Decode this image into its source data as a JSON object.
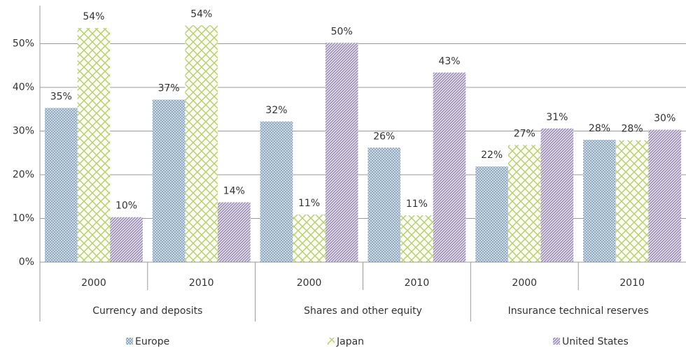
{
  "chart_data": {
    "type": "bar",
    "categories": [
      "2000",
      "2010",
      "2000",
      "2010",
      "2000",
      "2010"
    ],
    "category_groups": [
      "Currency and deposits",
      "Shares and other equity",
      "Insurance technical reserves"
    ],
    "series": [
      {
        "name": "Europe",
        "color": "#7f9db5",
        "pattern": "crosshatch",
        "values": [
          35.3,
          37.2,
          32.2,
          26.2,
          21.9,
          28.0
        ],
        "value_labels": [
          "35%",
          "37%",
          "32%",
          "26%",
          "22%",
          "28%"
        ]
      },
      {
        "name": "Japan",
        "color": "#b5cf6b",
        "pattern": "lattice",
        "values": [
          53.6,
          54.2,
          10.9,
          10.7,
          26.8,
          27.9
        ],
        "value_labels": [
          "54%",
          "54%",
          "11%",
          "11%",
          "27%",
          "28%"
        ]
      },
      {
        "name": "United States",
        "color": "#9a8cb3",
        "pattern": "diagonal",
        "values": [
          10.3,
          13.7,
          50.2,
          43.4,
          30.6,
          30.3
        ],
        "value_labels": [
          "10%",
          "14%",
          "50%",
          "43%",
          "31%",
          "30%"
        ]
      }
    ],
    "ylim": [
      0,
      60
    ],
    "yticks": [
      {
        "value": 0,
        "label": "0%"
      },
      {
        "value": 10,
        "label": "10%"
      },
      {
        "value": 20,
        "label": "20%"
      },
      {
        "value": 30,
        "label": "30%"
      },
      {
        "value": 40,
        "label": "40%"
      },
      {
        "value": 50,
        "label": "50%"
      }
    ],
    "grid": true,
    "legend": "bottom"
  }
}
